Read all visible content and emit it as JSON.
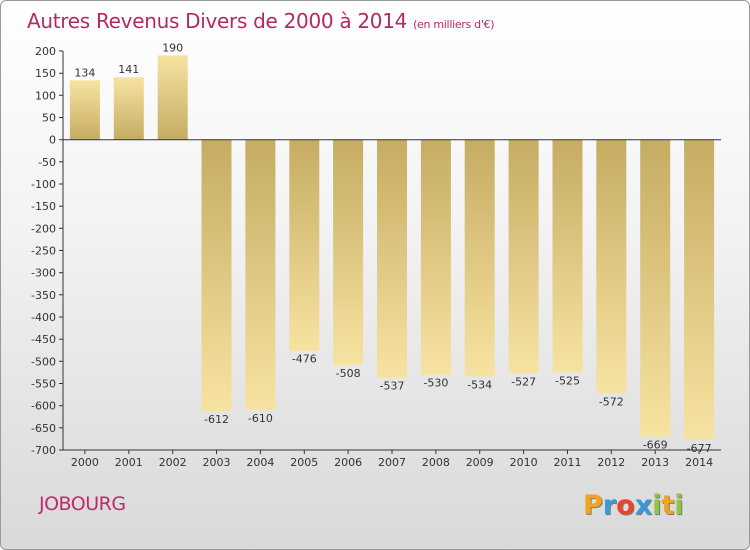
{
  "header": {
    "title": "Autres Revenus Divers de 2000 à 2014",
    "subtitle": "(en milliers d'€)"
  },
  "footer": {
    "place": "JOBOURG",
    "logo": {
      "text": "Proxiti",
      "letter_colors": [
        "#f2a41c",
        "#3a9ad9",
        "#e8452c",
        "#3a9ad9",
        "#8dc63f",
        "#f2a41c",
        "#8dc63f"
      ]
    }
  },
  "colors": {
    "title": "#b22a64",
    "bar_light": "#f7e3a1",
    "bar_dark": "#c6ac63",
    "axis": "#333333",
    "label": "#333333"
  },
  "chart_data": {
    "type": "bar",
    "title": "Autres Revenus Divers de 2000 à 2014",
    "subtitle": "(en milliers d'€)",
    "categories": [
      "2000",
      "2001",
      "2002",
      "2003",
      "2004",
      "2005",
      "2006",
      "2007",
      "2008",
      "2009",
      "2010",
      "2011",
      "2012",
      "2013",
      "2014"
    ],
    "values": [
      134,
      141,
      190,
      -612,
      -610,
      -476,
      -508,
      -537,
      -530,
      -534,
      -527,
      -525,
      -572,
      -669,
      -677
    ],
    "ylim": [
      -700,
      200
    ],
    "yticks": [
      200,
      150,
      100,
      50,
      0,
      -50,
      -100,
      -150,
      -200,
      -250,
      -300,
      -350,
      -400,
      -450,
      -500,
      -550,
      -600,
      -650,
      -700
    ],
    "xlabel": "",
    "ylabel": "",
    "grid": false,
    "legend": "none"
  }
}
